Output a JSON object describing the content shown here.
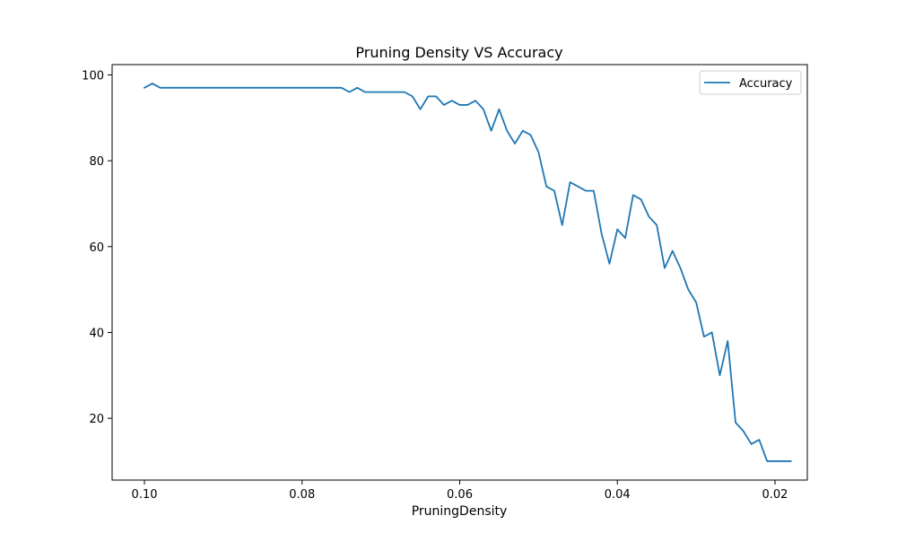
{
  "chart_data": {
    "type": "line",
    "title": "Pruning Density VS Accuracy",
    "xlabel": "PruningDensity",
    "ylabel": "",
    "x_inverted": true,
    "xlim": [
      0.1041,
      0.0159
    ],
    "ylim": [
      5.6,
      102.4
    ],
    "x_ticks": [
      0.1,
      0.08,
      0.06,
      0.04,
      0.02
    ],
    "x_tick_labels": [
      "0.10",
      "0.08",
      "0.06",
      "0.04",
      "0.02"
    ],
    "y_ticks": [
      20,
      40,
      60,
      80,
      100
    ],
    "y_tick_labels": [
      "20",
      "40",
      "60",
      "80",
      "100"
    ],
    "grid": false,
    "legend_position": "top-right",
    "series": [
      {
        "name": "Accuracy",
        "color": "#1f77b4",
        "x": [
          0.1,
          0.099,
          0.098,
          0.097,
          0.096,
          0.095,
          0.094,
          0.093,
          0.092,
          0.091,
          0.09,
          0.089,
          0.088,
          0.087,
          0.086,
          0.085,
          0.084,
          0.083,
          0.082,
          0.081,
          0.08,
          0.079,
          0.078,
          0.077,
          0.076,
          0.075,
          0.074,
          0.073,
          0.072,
          0.071,
          0.07,
          0.069,
          0.068,
          0.067,
          0.066,
          0.065,
          0.064,
          0.063,
          0.062,
          0.061,
          0.06,
          0.059,
          0.058,
          0.057,
          0.056,
          0.055,
          0.054,
          0.053,
          0.052,
          0.051,
          0.05,
          0.049,
          0.048,
          0.047,
          0.046,
          0.045,
          0.044,
          0.043,
          0.042,
          0.041,
          0.04,
          0.039,
          0.038,
          0.037,
          0.036,
          0.035,
          0.034,
          0.033,
          0.032,
          0.031,
          0.03,
          0.029,
          0.028,
          0.027,
          0.026,
          0.025,
          0.024,
          0.023,
          0.022,
          0.021,
          0.02,
          0.019,
          0.018
        ],
        "y": [
          97,
          98,
          97,
          97,
          97,
          97,
          97,
          97,
          97,
          97,
          97,
          97,
          97,
          97,
          97,
          97,
          97,
          97,
          97,
          97,
          97,
          97,
          97,
          97,
          97,
          97,
          96,
          97,
          96,
          96,
          96,
          96,
          96,
          96,
          95,
          92,
          95,
          95,
          93,
          94,
          93,
          93,
          94,
          92,
          87,
          92,
          87,
          84,
          87,
          86,
          82,
          74,
          73,
          65,
          75,
          74,
          73,
          73,
          63,
          56,
          64,
          62,
          72,
          71,
          67,
          65,
          55,
          59,
          55,
          50,
          47,
          39,
          40,
          30,
          38,
          19,
          17,
          14,
          15,
          10,
          10,
          10,
          10
        ]
      }
    ]
  }
}
